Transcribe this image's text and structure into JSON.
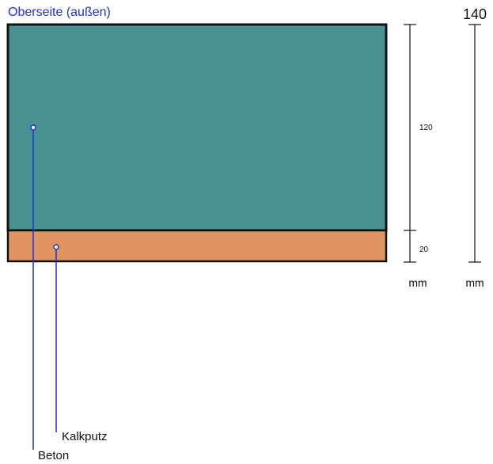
{
  "side_label": "Oberseite (außen)",
  "total_thickness": "140",
  "layers": [
    {
      "name": "Beton",
      "thickness": "120",
      "color": "#4a9191"
    },
    {
      "name": "Kalkputz",
      "thickness": "20",
      "color": "#e0945f"
    }
  ],
  "unit": "mm",
  "colors": {
    "label_blue": "#1f2fd6",
    "line_blue": "#1f2fd6",
    "outline": "#111111",
    "dim_line": "#111111"
  }
}
